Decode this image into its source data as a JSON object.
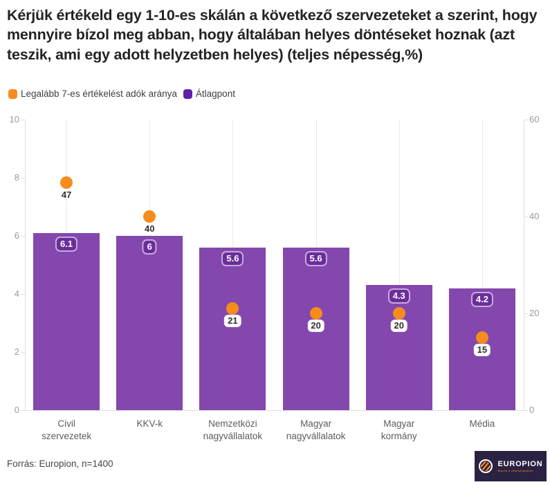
{
  "title": "Kérjük értékeld egy 1-10-es skálán a következő szervezeteket a szerint, hogy mennyire bízol meg abban, hogy általában helyes döntéseket hoznak (azt teszik, ami egy adott helyzetben helyes) (teljes népesség,%)",
  "legend": [
    {
      "label": "Legalább 7-es értékelést adók aránya",
      "color": "#F78C1E"
    },
    {
      "label": "Átlagpont",
      "color": "#5E21A8"
    }
  ],
  "colors": {
    "bar": "#8447AE",
    "bar_label_bg": "#6B2D9B",
    "dot": "#F78C1E",
    "logo_bg": "#2B2142"
  },
  "chart_data": {
    "type": "bar",
    "subtype": "bar-with-scatter-overlay",
    "categories": [
      "Civil\nszervezetek",
      "KKV-k",
      "Nemzetközi\nnagyvállalatok",
      "Magyar\nnagyvállalatok",
      "Magyar\nkormány",
      "Média"
    ],
    "series": [
      {
        "name": "Átlagpont",
        "type": "bar",
        "axis": "left",
        "values": [
          6.1,
          6,
          5.6,
          5.6,
          4.3,
          4.2
        ],
        "labels": [
          "6.1",
          "6",
          "5.6",
          "5.6",
          "4.3",
          "4.2"
        ]
      },
      {
        "name": "Legalább 7-es értékelést adók aránya",
        "type": "scatter",
        "axis": "right",
        "values": [
          47,
          40,
          21,
          20,
          20,
          15
        ],
        "labels": [
          "47",
          "40",
          "21",
          "20",
          "20",
          "15"
        ]
      }
    ],
    "left_axis": {
      "range": [
        0,
        10
      ],
      "ticks": [
        10,
        8,
        6,
        4,
        2,
        0
      ]
    },
    "right_axis": {
      "range": [
        0,
        60
      ],
      "ticks": [
        60,
        40,
        20,
        0
      ]
    },
    "grid": "vertical-only",
    "legend_position": "top-left"
  },
  "footer": {
    "source": "Forrás: Europion, n=1400"
  },
  "logo": {
    "name": "EUROPION",
    "tagline": "Bízunk a véleményedben"
  }
}
